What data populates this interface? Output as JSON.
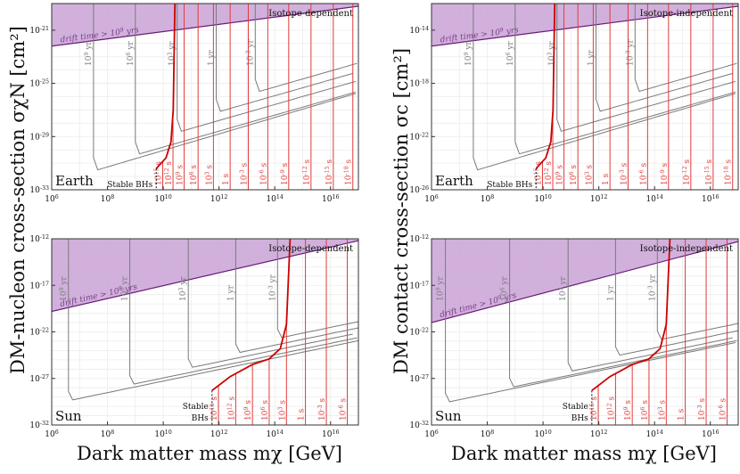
{
  "ylabel_left": "DM-nucleon cross-section σχN [cm²]",
  "ylabel_right": "DM contact cross-section σc [cm²]",
  "xlabel_left": "Dark matter mass mχ [GeV]",
  "xlabel_right": "Dark matter mass mχ [GeV]",
  "colors": {
    "gray": "#7a7a7a",
    "red": "#e23b3b",
    "bound": "#cc0000",
    "shade": "#c9a3d6",
    "shade_edge": "#6a1b7a",
    "shade_text": "#7d3a8c"
  },
  "chart_data": [
    {
      "type": "line",
      "panel": "top-left",
      "title": "Isotope-dependent",
      "body": "Earth",
      "xscale": "log",
      "yscale": "log",
      "xlim": [
        1000000.0,
        1e+17
      ],
      "ylim": [
        1e-33,
        1e-19
      ],
      "xticks": [
        "10^6",
        "10^8",
        "10^10",
        "10^12",
        "10^14",
        "10^16"
      ],
      "yticks": [
        {
          "v": -21,
          "t": "10^-21"
        },
        {
          "v": -25,
          "t": "10^-25"
        },
        {
          "v": -29,
          "t": "10^-29"
        },
        {
          "v": -33,
          "t": "10^-33"
        }
      ],
      "drift": {
        "label": "drift time > 10^9 yrs",
        "left": [
          -19.6,
          -22.2
        ],
        "right": [
          -17.5,
          -19.2
        ]
      },
      "stable_label": "Stable BHs",
      "stable_x": 9.75,
      "gray_curves": [
        {
          "label": "10^9 yr",
          "x_wall": 7.5,
          "y_min": -31.5,
          "slope": 0.62
        },
        {
          "label": "10^6 yr",
          "x_wall": 9.0,
          "y_min": -30.3,
          "slope": 0.6
        },
        {
          "label": "10^3 yr",
          "x_wall": 10.5,
          "y_min": -28.6,
          "slope": 0.6
        },
        {
          "label": "1 yr",
          "x_wall": 11.9,
          "y_min": -27.1,
          "slope": 0.6
        },
        {
          "label": "10^-3 yr",
          "x_wall": 13.3,
          "y_min": -25.6,
          "slope": 0.6
        }
      ],
      "red_boundary": [
        [
          9.75,
          -31.4
        ],
        [
          10.1,
          -30.6
        ],
        [
          10.28,
          -29.4
        ],
        [
          10.36,
          -27
        ],
        [
          10.42,
          -19
        ]
      ],
      "red_lines": [
        {
          "x": 9.98,
          "label": "10^15 s"
        },
        {
          "x": 10.35,
          "label": "10^12 s"
        },
        {
          "x": 10.75,
          "label": "10^9 s"
        },
        {
          "x": 11.25,
          "label": "10^6 s"
        },
        {
          "x": 11.8,
          "label": "10^3 s"
        },
        {
          "x": 12.4,
          "label": "1 s"
        },
        {
          "x": 13.05,
          "label": "10^-3 s"
        },
        {
          "x": 13.75,
          "label": "10^-6 s"
        },
        {
          "x": 14.5,
          "label": "10^-9 s"
        },
        {
          "x": 15.3,
          "label": "10^-12 s"
        },
        {
          "x": 16.1,
          "label": "10^-15 s"
        },
        {
          "x": 16.8,
          "label": "10^-18 s"
        }
      ]
    },
    {
      "type": "line",
      "panel": "top-right",
      "title": "Isotope-independent",
      "body": "Earth",
      "xscale": "log",
      "yscale": "log",
      "xlim": [
        1000000.0,
        1e+17
      ],
      "ylim": [
        1e-26,
        1e-12
      ],
      "xticks": [
        "10^6",
        "10^8",
        "10^10",
        "10^12",
        "10^14",
        "10^16"
      ],
      "yticks": [
        {
          "v": -14,
          "t": "10^-14"
        },
        {
          "v": -18,
          "t": "10^-18"
        },
        {
          "v": -22,
          "t": "10^-22"
        },
        {
          "v": -26,
          "t": "10^-26"
        }
      ],
      "drift": {
        "label": "drift time > 10^9 yrs",
        "left": [
          -12.6,
          -15.2
        ],
        "right": [
          -10.5,
          -12.2
        ]
      },
      "stable_label": "Stable BHs",
      "stable_x": 9.75,
      "gray_curves": [
        {
          "label": "10^9 yr",
          "x_wall": 7.5,
          "y_min": -24.5,
          "slope": 0.62
        },
        {
          "label": "10^6 yr",
          "x_wall": 9.0,
          "y_min": -23.3,
          "slope": 0.6
        },
        {
          "label": "10^3 yr",
          "x_wall": 10.5,
          "y_min": -21.6,
          "slope": 0.6
        },
        {
          "label": "1 yr",
          "x_wall": 11.9,
          "y_min": -20.1,
          "slope": 0.6
        },
        {
          "label": "10^-3 yr",
          "x_wall": 13.3,
          "y_min": -18.6,
          "slope": 0.6
        }
      ],
      "red_boundary": [
        [
          9.75,
          -24.4
        ],
        [
          10.1,
          -23.6
        ],
        [
          10.28,
          -22.4
        ],
        [
          10.36,
          -20
        ],
        [
          10.42,
          -12
        ]
      ],
      "red_lines": [
        {
          "x": 9.98,
          "label": "10^15 s"
        },
        {
          "x": 10.35,
          "label": "10^12 s"
        },
        {
          "x": 10.75,
          "label": "10^9 s"
        },
        {
          "x": 11.25,
          "label": "10^6 s"
        },
        {
          "x": 11.8,
          "label": "10^3 s"
        },
        {
          "x": 12.4,
          "label": "1 s"
        },
        {
          "x": 13.05,
          "label": "10^-3 s"
        },
        {
          "x": 13.75,
          "label": "10^-6 s"
        },
        {
          "x": 14.5,
          "label": "10^-9 s"
        },
        {
          "x": 15.3,
          "label": "10^-12 s"
        },
        {
          "x": 16.1,
          "label": "10^-15 s"
        },
        {
          "x": 16.8,
          "label": "10^-18 s"
        }
      ]
    },
    {
      "type": "line",
      "panel": "bottom-left",
      "title": "Isotope-dependent",
      "body": "Sun",
      "xscale": "log",
      "yscale": "log",
      "xlim": [
        1000000.0,
        1e+17
      ],
      "ylim": [
        1e-32,
        1e-12
      ],
      "xticks": [
        "10^6",
        "10^8",
        "10^10",
        "10^12",
        "10^14",
        "10^16"
      ],
      "yticks": [
        {
          "v": -12,
          "t": "10^-12"
        },
        {
          "v": -17,
          "t": "10^-17"
        },
        {
          "v": -22,
          "t": "10^-22"
        },
        {
          "v": -27,
          "t": "10^-27"
        },
        {
          "v": -32,
          "t": "10^-32"
        }
      ],
      "drift": {
        "label": "drift time > 10^9 yrs",
        "left": [
          -13.5,
          -19.8
        ],
        "right": [
          -7,
          -12.2
        ]
      },
      "stable_label": "Stable\nBHs",
      "stable_x": 11.75,
      "gray_curves": [
        {
          "label": "10^9 yr",
          "x_wall": 6.6,
          "y_min": -29.3,
          "slope": 0.62
        },
        {
          "label": "10^6 yr",
          "x_wall": 8.8,
          "y_min": -27.6,
          "slope": 0.62
        },
        {
          "label": "10^3 yr",
          "x_wall": 10.9,
          "y_min": -25.8,
          "slope": 0.62
        },
        {
          "label": "1 yr",
          "x_wall": 12.6,
          "y_min": -24.2,
          "slope": 0.62
        },
        {
          "label": "10^-3 yr",
          "x_wall": 14.1,
          "y_min": -22.6,
          "slope": 0.62
        }
      ],
      "red_boundary": [
        [
          11.75,
          -28.3
        ],
        [
          12.4,
          -26.8
        ],
        [
          13.2,
          -25.5
        ],
        [
          13.8,
          -24.9
        ],
        [
          14.2,
          -23.8
        ],
        [
          14.42,
          -21.2
        ],
        [
          14.55,
          -12
        ]
      ],
      "red_lines": [
        {
          "x": 11.98,
          "label": "10^15 s"
        },
        {
          "x": 12.6,
          "label": "10^12 s"
        },
        {
          "x": 13.2,
          "label": "10^9 s"
        },
        {
          "x": 13.8,
          "label": "10^6 s"
        },
        {
          "x": 14.42,
          "label": "10^3 s"
        },
        {
          "x": 15.1,
          "label": "1 s"
        },
        {
          "x": 15.85,
          "label": "10^-3 s"
        },
        {
          "x": 16.6,
          "label": "10^-6 s"
        }
      ]
    },
    {
      "type": "line",
      "panel": "bottom-right",
      "title": "Isotope-independent",
      "body": "Sun",
      "xscale": "log",
      "yscale": "log",
      "xlim": [
        1000000.0,
        1e+17
      ],
      "ylim": [
        1e-32,
        1e-12
      ],
      "xticks": [
        "10^6",
        "10^8",
        "10^10",
        "10^12",
        "10^14",
        "10^16"
      ],
      "yticks": [
        {
          "v": -12,
          "t": "10^-12"
        },
        {
          "v": -17,
          "t": "10^-17"
        },
        {
          "v": -22,
          "t": "10^-22"
        },
        {
          "v": -27,
          "t": "10^-27"
        },
        {
          "v": -32,
          "t": "10^-32"
        }
      ],
      "drift": {
        "label": "drift time > 10^9 yrs",
        "left": [
          -14.5,
          -21
        ],
        "right": [
          -7,
          -12.3
        ]
      },
      "stable_label": "Stable\nBHs",
      "stable_x": 11.75,
      "gray_curves": [
        {
          "label": "10^9 yr",
          "x_wall": 6.5,
          "y_min": -29.5,
          "slope": 0.62
        },
        {
          "label": "10^6 yr",
          "x_wall": 8.8,
          "y_min": -27.9,
          "slope": 0.62
        },
        {
          "label": "10^3 yr",
          "x_wall": 10.9,
          "y_min": -26.2,
          "slope": 0.62
        },
        {
          "label": "1 yr",
          "x_wall": 12.6,
          "y_min": -24.5,
          "slope": 0.62
        },
        {
          "label": "10^-3 yr",
          "x_wall": 14.1,
          "y_min": -22.8,
          "slope": 0.62
        }
      ],
      "red_boundary": [
        [
          11.75,
          -28.3
        ],
        [
          12.4,
          -26.8
        ],
        [
          13.2,
          -25.5
        ],
        [
          13.8,
          -24.9
        ],
        [
          14.2,
          -23.8
        ],
        [
          14.42,
          -21.2
        ],
        [
          14.55,
          -12
        ]
      ],
      "red_lines": [
        {
          "x": 11.98,
          "label": "10^15 s"
        },
        {
          "x": 12.6,
          "label": "10^12 s"
        },
        {
          "x": 13.2,
          "label": "10^9 s"
        },
        {
          "x": 13.8,
          "label": "10^6 s"
        },
        {
          "x": 14.42,
          "label": "10^3 s"
        },
        {
          "x": 15.1,
          "label": "1 s"
        },
        {
          "x": 15.85,
          "label": "10^-3 s"
        },
        {
          "x": 16.6,
          "label": "10^-6 s"
        }
      ]
    }
  ]
}
